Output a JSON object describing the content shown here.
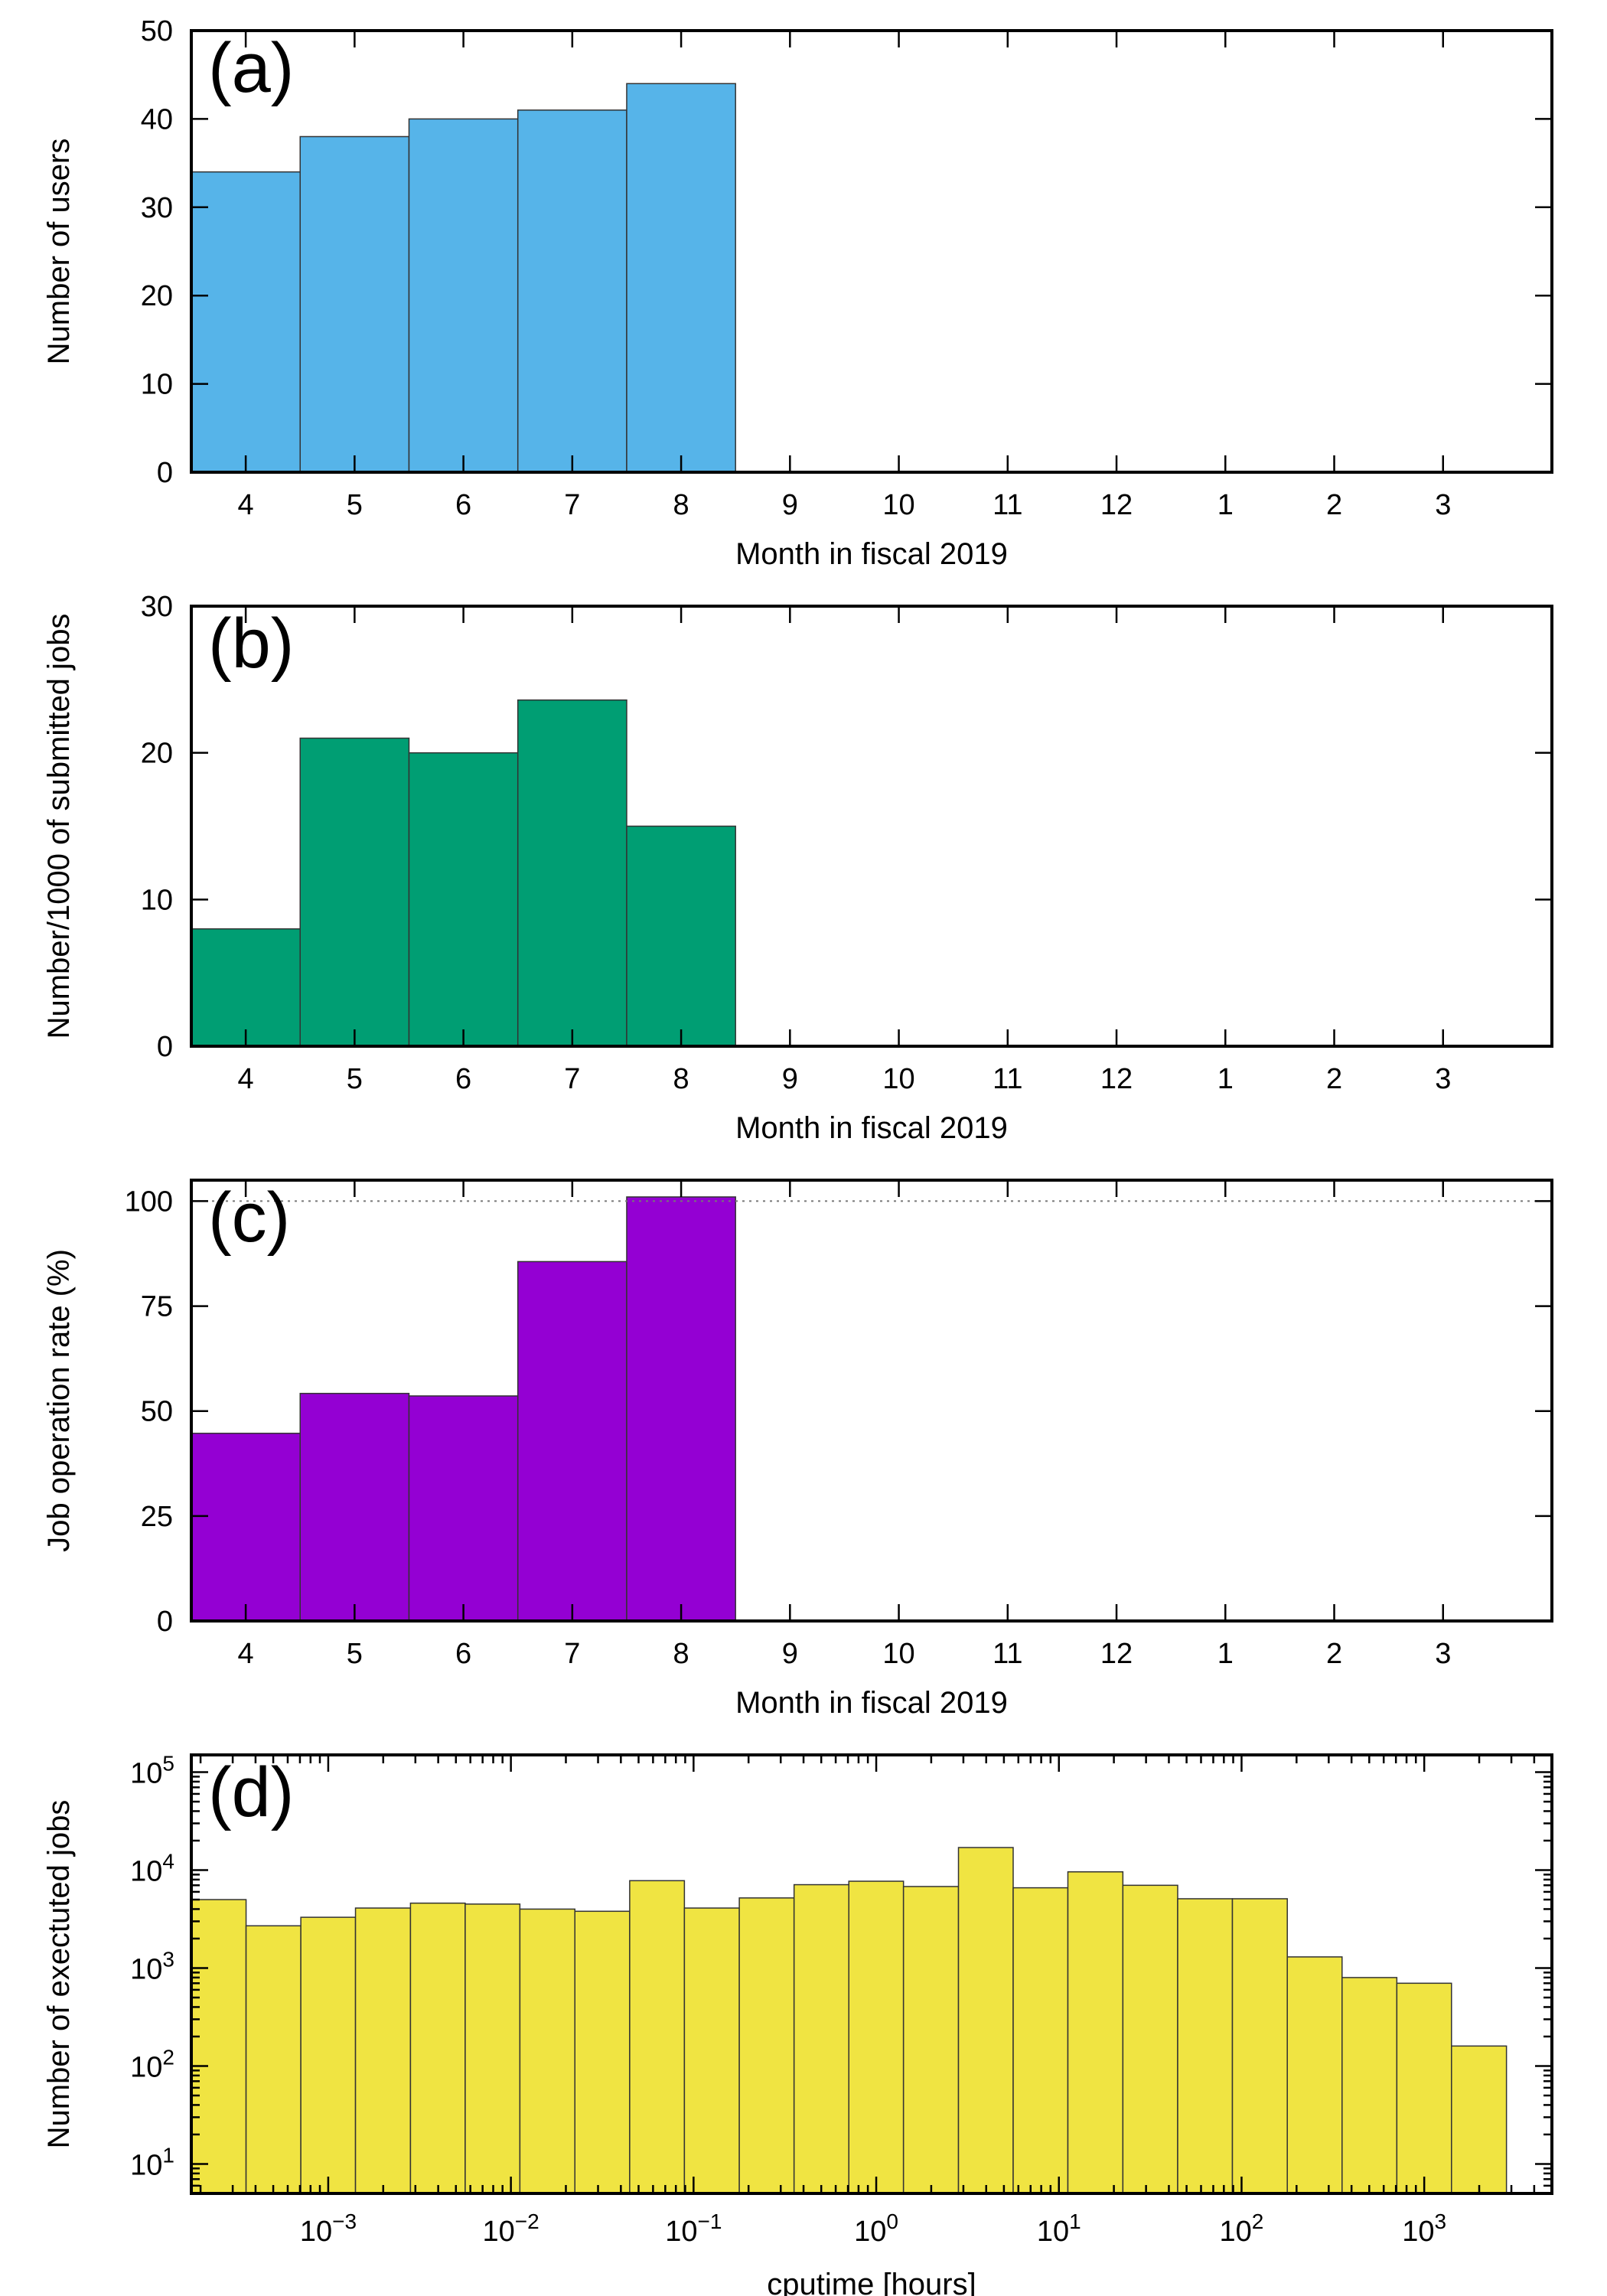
{
  "chart_data": [
    {
      "type": "bar",
      "panel_label": "(a)",
      "categories": [
        "4",
        "5",
        "6",
        "7",
        "8",
        "9",
        "10",
        "11",
        "12",
        "1",
        "2",
        "3"
      ],
      "values": [
        34,
        38,
        40,
        41,
        44,
        null,
        null,
        null,
        null,
        null,
        null,
        null
      ],
      "ylim": [
        0,
        50
      ],
      "yticks": [
        0,
        10,
        20,
        30,
        40,
        50
      ],
      "xlabel": "Month in fiscal 2019",
      "ylabel": "Number of users",
      "color": "#56b4e9",
      "grid": false
    },
    {
      "type": "bar",
      "panel_label": "(b)",
      "categories": [
        "4",
        "5",
        "6",
        "7",
        "8",
        "9",
        "10",
        "11",
        "12",
        "1",
        "2",
        "3"
      ],
      "values": [
        8,
        21,
        20,
        23.6,
        15,
        null,
        null,
        null,
        null,
        null,
        null,
        null
      ],
      "ylim": [
        0,
        30
      ],
      "yticks": [
        0,
        10,
        20,
        30
      ],
      "xlabel": "Month in fiscal 2019",
      "ylabel": "Number/1000 of submitted jobs",
      "color": "#009e73",
      "grid": false
    },
    {
      "type": "bar",
      "panel_label": "(c)",
      "categories": [
        "4",
        "5",
        "6",
        "7",
        "8",
        "9",
        "10",
        "11",
        "12",
        "1",
        "2",
        "3"
      ],
      "values": [
        44.7,
        54.2,
        53.6,
        85.6,
        101,
        null,
        null,
        null,
        null,
        null,
        null,
        null
      ],
      "ylim": [
        0,
        105
      ],
      "yticks": [
        0,
        25,
        50,
        75,
        100
      ],
      "reference_line": 100,
      "xlabel": "Month in fiscal 2019",
      "ylabel": "Job operation rate (%)",
      "color": "#9400d3",
      "grid": false
    },
    {
      "type": "bar",
      "panel_label": "(d)",
      "x_scale": "log",
      "y_scale": "log",
      "bin_edges": [
        0.000178,
        0.000355,
        0.000708,
        0.00141,
        0.00282,
        0.00562,
        0.0112,
        0.0224,
        0.0447,
        0.0891,
        0.178,
        0.355,
        0.708,
        1.41,
        2.82,
        5.62,
        11.2,
        22.4,
        44.7,
        89.1,
        178,
        355,
        708,
        1410,
        2820
      ],
      "values": [
        5000,
        2700,
        3300,
        4100,
        4600,
        4500,
        4000,
        3800,
        7800,
        4100,
        5200,
        7100,
        7700,
        6800,
        17000,
        6600,
        9600,
        7000,
        5100,
        5100,
        1300,
        800,
        700,
        160
      ],
      "xlim": [
        0.000178,
        5000
      ],
      "ylim": [
        5,
        150000
      ],
      "xticks": [
        0.001,
        0.01,
        0.1,
        1,
        10,
        100,
        1000
      ],
      "xtick_bases": [
        "10",
        "10",
        "10",
        "10",
        "10",
        "10",
        "10"
      ],
      "xtick_exponents": [
        "−3",
        "−2",
        "−1",
        "0",
        "1",
        "2",
        "3"
      ],
      "yticks": [
        10,
        100,
        1000,
        10000,
        100000
      ],
      "ytick_bases": [
        "10",
        "10",
        "10",
        "10",
        "10"
      ],
      "ytick_exponents": [
        "1",
        "2",
        "3",
        "4",
        "5"
      ],
      "xlabel": "cputime [hours]",
      "ylabel": "Number of exectuted jobs",
      "color": "#f0e442",
      "grid": false
    }
  ]
}
